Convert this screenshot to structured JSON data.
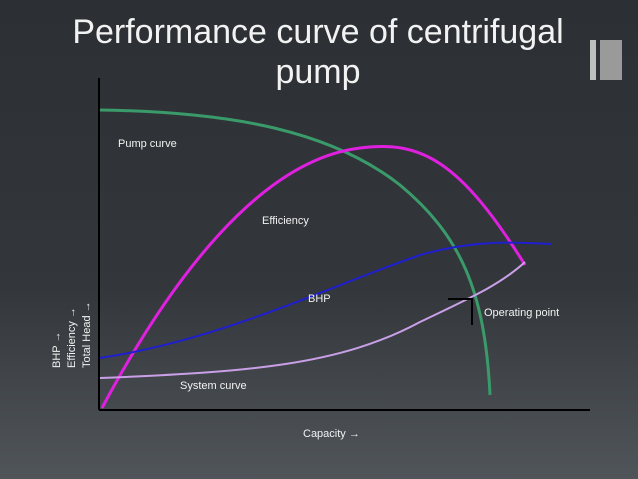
{
  "title": "Performance curve of centrifugal pump",
  "curve_labels": {
    "pump_curve": "Pump curve",
    "efficiency": "Efficiency",
    "bhp": "BHP",
    "operating_point": "Operating point",
    "system_curve": "System curve"
  },
  "x_axis_label": "Capacity  →",
  "y_axis_labels": [
    "BHP →",
    "Efficiency →",
    "Total Head →"
  ]
}
